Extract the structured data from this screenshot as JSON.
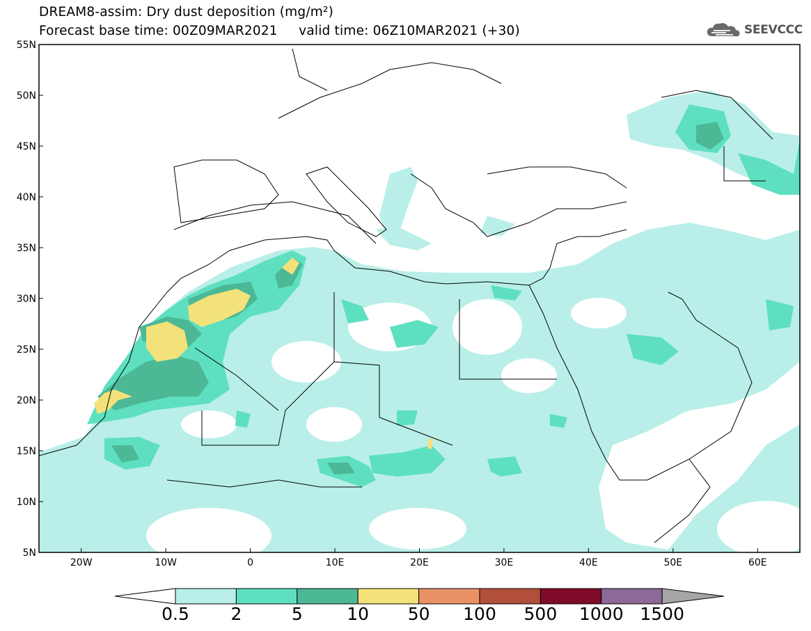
{
  "header": {
    "title": "DREAM8-assim: Dry dust deposition (mg/m²)",
    "subtitle_base": "Forecast base time: 00Z09MAR2021",
    "subtitle_valid": "valid time: 06Z10MAR2021 (+30)"
  },
  "logo": {
    "text": "SEEVCCC",
    "icon": "cloud-logo-icon"
  },
  "map": {
    "lon_range": [
      -25,
      65
    ],
    "lat_range": [
      5,
      55
    ],
    "lon_ticks": [
      {
        "v": -20,
        "label": "20W"
      },
      {
        "v": -10,
        "label": "10W"
      },
      {
        "v": 0,
        "label": "0"
      },
      {
        "v": 10,
        "label": "10E"
      },
      {
        "v": 20,
        "label": "20E"
      },
      {
        "v": 30,
        "label": "30E"
      },
      {
        "v": 40,
        "label": "40E"
      },
      {
        "v": 50,
        "label": "50E"
      },
      {
        "v": 60,
        "label": "60E"
      }
    ],
    "lat_ticks": [
      {
        "v": 55,
        "label": "55N"
      },
      {
        "v": 50,
        "label": "50N"
      },
      {
        "v": 45,
        "label": "45N"
      },
      {
        "v": 40,
        "label": "40N"
      },
      {
        "v": 35,
        "label": "35N"
      },
      {
        "v": 30,
        "label": "30N"
      },
      {
        "v": 25,
        "label": "25N"
      },
      {
        "v": 20,
        "label": "20N"
      },
      {
        "v": 15,
        "label": "15N"
      },
      {
        "v": 10,
        "label": "10N"
      },
      {
        "v": 5,
        "label": "5N"
      }
    ]
  },
  "colorbar": {
    "labels": [
      "0.5",
      "2",
      "5",
      "10",
      "50",
      "100",
      "500",
      "1000",
      "1500"
    ],
    "colors": [
      "#b9efe8",
      "#5ee0c0",
      "#4db896",
      "#f3e27a",
      "#ea9166",
      "#b24f3c",
      "#800b2a",
      "#8c6998",
      "#a6a6a6"
    ],
    "under_color": "#ffffff",
    "over_color": "#a6a6a6"
  }
}
